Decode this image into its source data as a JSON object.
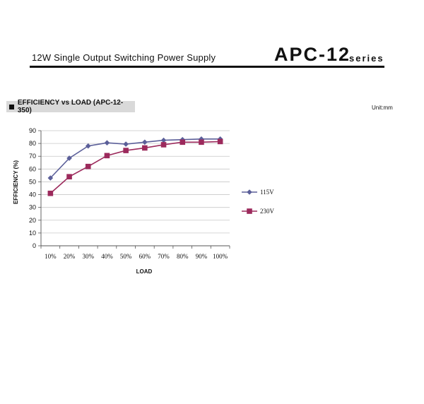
{
  "header": {
    "subtitle": "12W Single Output Switching Power Supply",
    "model": "APC-12",
    "series_word": "series"
  },
  "section": {
    "title": "EFFICIENCY vs LOAD (APC-12-350)",
    "unit": "Unit:mm"
  },
  "chart_data": {
    "type": "line",
    "title": "",
    "xlabel": "LOAD",
    "ylabel": "EFFICIENCY (%)",
    "categories": [
      "10%",
      "20%",
      "30%",
      "40%",
      "50%",
      "60%",
      "70%",
      "80%",
      "90%",
      "100%"
    ],
    "ylim": [
      0,
      90
    ],
    "yticks": [
      0,
      10,
      20,
      30,
      40,
      50,
      60,
      70,
      80,
      90
    ],
    "grid": true,
    "legend_position": "right",
    "series": [
      {
        "name": "115V",
        "color": "#5b5f99",
        "marker": "diamond",
        "values": [
          53,
          68.5,
          78,
          80.5,
          79.5,
          81,
          82.5,
          83,
          83.5,
          83.5
        ]
      },
      {
        "name": "230V",
        "color": "#9c2a5c",
        "marker": "square",
        "values": [
          41,
          54,
          62,
          70.5,
          74.5,
          76.5,
          79,
          81,
          81,
          81.5
        ]
      }
    ]
  }
}
